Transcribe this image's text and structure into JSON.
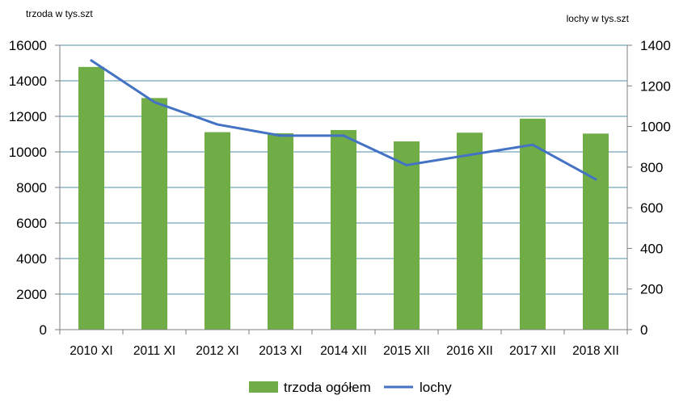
{
  "chart_data": {
    "type": "bar",
    "categories": [
      "2010 XI",
      "2011 XI",
      "2012 XI",
      "2013 XI",
      "2014 XII",
      "2015 XII",
      "2016 XII",
      "2017 XII",
      "2018 XII"
    ],
    "series": [
      {
        "name": "trzoda ogółem",
        "type": "bar",
        "axis": "left",
        "color": "#70AD47",
        "values": [
          14780,
          13030,
          11110,
          11050,
          11230,
          10590,
          11080,
          11870,
          11030
        ]
      },
      {
        "name": "lochy",
        "type": "line",
        "axis": "right",
        "color": "#4472C4",
        "values": [
          1325,
          1120,
          1010,
          955,
          955,
          810,
          860,
          910,
          740
        ]
      }
    ],
    "ylabel_left": "trzoda w tys.szt",
    "ylabel_right": "lochy w tys.szt",
    "ylim_left": [
      0,
      16000
    ],
    "ylim_right": [
      0,
      1400
    ],
    "yticks_left": [
      "0",
      "2000",
      "4000",
      "6000",
      "8000",
      "10000",
      "12000",
      "14000",
      "16000"
    ],
    "yticks_right": [
      "0",
      "200",
      "400",
      "600",
      "800",
      "1000",
      "1200",
      "1400"
    ],
    "grid": true,
    "legend_position": "bottom"
  }
}
